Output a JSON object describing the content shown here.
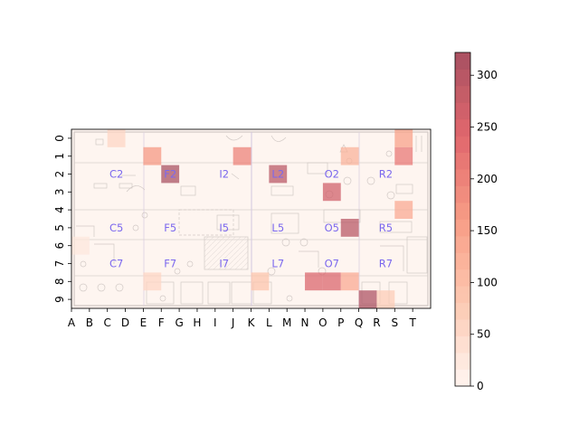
{
  "chart_data": {
    "type": "heatmap",
    "title": "",
    "xlabel": "",
    "ylabel": "",
    "x_categories": [
      "A",
      "B",
      "C",
      "D",
      "E",
      "F",
      "G",
      "H",
      "I",
      "J",
      "K",
      "L",
      "M",
      "N",
      "O",
      "P",
      "Q",
      "R",
      "S",
      "T"
    ],
    "y_categories": [
      "0",
      "1",
      "2",
      "3",
      "4",
      "5",
      "6",
      "7",
      "8",
      "9"
    ],
    "colorbar": {
      "min": 0,
      "max": 322,
      "ticks": [
        0,
        50,
        100,
        150,
        200,
        250,
        300
      ],
      "levels": 20,
      "colormap": "Reds"
    },
    "background": "floor-plan",
    "grid": false,
    "cells": [
      {
        "x": "C",
        "y": "0",
        "value": 60
      },
      {
        "x": "S",
        "y": "0",
        "value": 150
      },
      {
        "x": "E",
        "y": "1",
        "value": 175
      },
      {
        "x": "J",
        "y": "1",
        "value": 200
      },
      {
        "x": "P",
        "y": "1",
        "value": 120
      },
      {
        "x": "S",
        "y": "1",
        "value": 210
      },
      {
        "x": "F",
        "y": "2",
        "value": 322
      },
      {
        "x": "L",
        "y": "2",
        "value": 300
      },
      {
        "x": "O",
        "y": "3",
        "value": 260
      },
      {
        "x": "S",
        "y": "4",
        "value": 140
      },
      {
        "x": "P",
        "y": "5",
        "value": 300
      },
      {
        "x": "A",
        "y": "6",
        "value": 30
      },
      {
        "x": "E",
        "y": "8",
        "value": 60
      },
      {
        "x": "K",
        "y": "8",
        "value": 90
      },
      {
        "x": "N",
        "y": "8",
        "value": 250
      },
      {
        "x": "O",
        "y": "8",
        "value": 245
      },
      {
        "x": "P",
        "y": "8",
        "value": 140
      },
      {
        "x": "Q",
        "y": "9",
        "value": 310
      },
      {
        "x": "R",
        "y": "9",
        "value": 80
      }
    ],
    "base_value": 10,
    "room_labels": [
      {
        "text": "C2",
        "x": "C",
        "y": "2"
      },
      {
        "text": "F2",
        "x": "F",
        "y": "2"
      },
      {
        "text": "I2",
        "x": "I",
        "y": "2"
      },
      {
        "text": "L2",
        "x": "L",
        "y": "2"
      },
      {
        "text": "O2",
        "x": "O",
        "y": "2"
      },
      {
        "text": "R2",
        "x": "R",
        "y": "2"
      },
      {
        "text": "C5",
        "x": "C",
        "y": "5"
      },
      {
        "text": "F5",
        "x": "F",
        "y": "5"
      },
      {
        "text": "I5",
        "x": "I",
        "y": "5"
      },
      {
        "text": "L5",
        "x": "L",
        "y": "5"
      },
      {
        "text": "O5",
        "x": "O",
        "y": "5"
      },
      {
        "text": "R5",
        "x": "R",
        "y": "5"
      },
      {
        "text": "C7",
        "x": "C",
        "y": "7"
      },
      {
        "text": "F7",
        "x": "F",
        "y": "7"
      },
      {
        "text": "I7",
        "x": "I",
        "y": "7"
      },
      {
        "text": "L7",
        "x": "L",
        "y": "7"
      },
      {
        "text": "O7",
        "x": "O",
        "y": "7"
      },
      {
        "text": "R7",
        "x": "R",
        "y": "7"
      }
    ]
  }
}
